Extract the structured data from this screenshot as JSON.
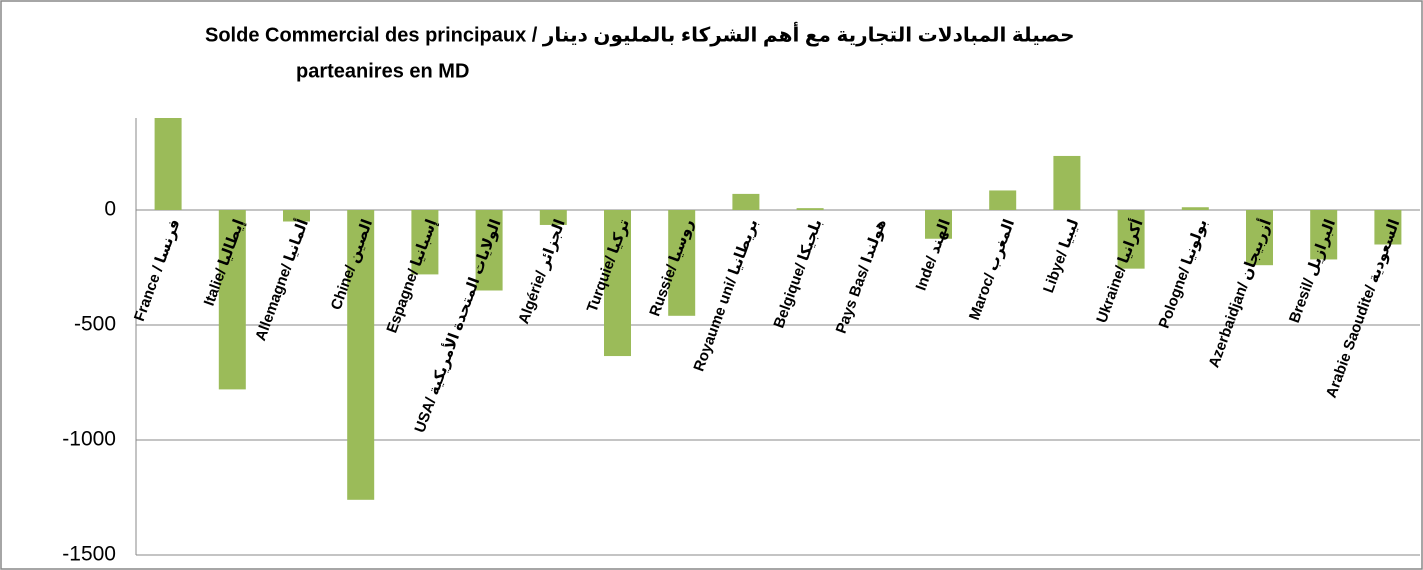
{
  "chart_data": {
    "type": "bar",
    "title": [
      "Solde Commercial des principaux / حصيلة المبادلات التجارية مع أهم الشركاء بالمليون دينار",
      "parteanires en MD"
    ],
    "categories": [
      "France / فرنسا",
      "Italie/ إيطاليا",
      "Allemagne/ ألمانيا",
      "Chine/ الصين",
      "Espagne/ إسبانيا",
      "USA/ الولايات المتحدة الأمريكية",
      "Algérie/ الجزائر",
      "Turquie/ تركيا",
      "Russie/ روسيا",
      "Royaume uni/ بريطانيا",
      "Belgique/ بلجيكا",
      "Pays Bas/ هولندا",
      "Inde/ الهند",
      "Maroc/ المغرب",
      "Libye/ ليبيا",
      "Ukraine/ أكرانيا",
      "Pologne/ بولونيا",
      "Azerbaidjan/ أزربيجان",
      "Bresil/ البرازيل",
      "Arabie Saoudite/ السعودية"
    ],
    "values": [
      400,
      -780,
      -50,
      -1260,
      -280,
      -350,
      -65,
      -635,
      -460,
      70,
      8,
      0,
      -125,
      85,
      235,
      -255,
      12,
      -240,
      -215,
      -150
    ],
    "color": "#9bbb59",
    "ylim": [
      -1500,
      400
    ],
    "yticks": [
      -1500,
      -1000,
      -500,
      0
    ],
    "grid": true
  }
}
